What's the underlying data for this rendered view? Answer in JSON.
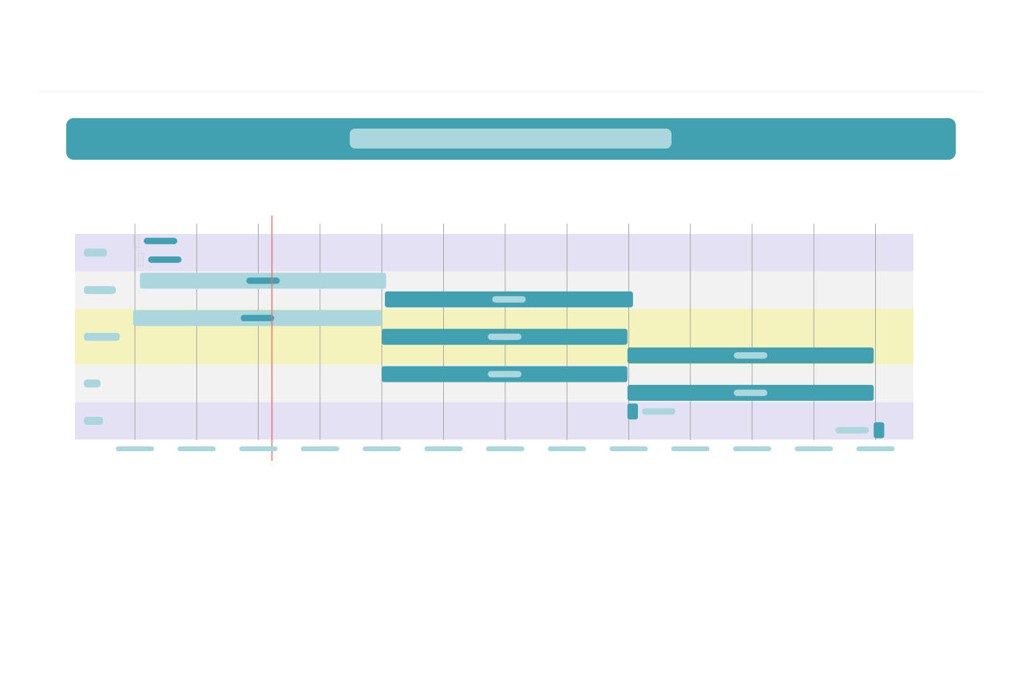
{
  "header": {
    "title": ""
  },
  "colors": {
    "header_bg": "#42a1b0",
    "placeholder": "#aad7de",
    "task_primary": "#42a1b0",
    "task_secondary": "#aad7de",
    "band_lavender": "#e4e1f4",
    "band_grey": "#f2f2f2",
    "band_yellow": "#f4f2bd",
    "grid": "#9b9b9b",
    "today_marker": "#e8736d",
    "milestone": "#d3d3d3"
  },
  "chart_data": {
    "type": "gantt",
    "title": "",
    "x_ticks": [
      "",
      "",
      "",
      "",
      "",
      "",
      "",
      "",
      "",
      "",
      "",
      "",
      ""
    ],
    "x_range": [
      0,
      12
    ],
    "today": 2.22,
    "lanes": [
      {
        "label": "",
        "band": "lavender",
        "rows": 2
      },
      {
        "label": "",
        "band": "grey",
        "rows": 2
      },
      {
        "label": "",
        "band": "yellow",
        "rows": 3
      },
      {
        "label": "",
        "band": "grey",
        "rows": 2
      },
      {
        "label": "",
        "band": "lavender",
        "rows": 2
      }
    ],
    "tasks": [
      {
        "lane": 0,
        "row": 0,
        "start": 0.0,
        "end": 0.0,
        "kind": "milestone",
        "label": ""
      },
      {
        "lane": 0,
        "row": 1,
        "start": 0.07,
        "end": 0.07,
        "kind": "milestone",
        "label": ""
      },
      {
        "lane": 1,
        "row": 0,
        "start": 0.08,
        "end": 4.07,
        "kind": "secondary",
        "label": ""
      },
      {
        "lane": 1,
        "row": 1,
        "start": 4.05,
        "end": 8.07,
        "kind": "primary",
        "label": ""
      },
      {
        "lane": 2,
        "row": 0,
        "start": -0.03,
        "end": 4.0,
        "kind": "secondary",
        "label": ""
      },
      {
        "lane": 2,
        "row": 1,
        "start": 4.0,
        "end": 7.98,
        "kind": "primary",
        "label": ""
      },
      {
        "lane": 2,
        "row": 2,
        "start": 7.98,
        "end": 11.97,
        "kind": "primary",
        "label": ""
      },
      {
        "lane": 3,
        "row": 0,
        "start": 4.0,
        "end": 7.98,
        "kind": "primary",
        "label": ""
      },
      {
        "lane": 3,
        "row": 1,
        "start": 7.98,
        "end": 11.97,
        "kind": "primary",
        "label": ""
      },
      {
        "lane": 4,
        "row": 0,
        "start": 7.98,
        "end": 8.15,
        "kind": "primary",
        "label": "",
        "label_position": "right"
      },
      {
        "lane": 4,
        "row": 1,
        "start": 11.97,
        "end": 12.14,
        "kind": "primary",
        "label": "",
        "label_position": "left"
      }
    ]
  }
}
